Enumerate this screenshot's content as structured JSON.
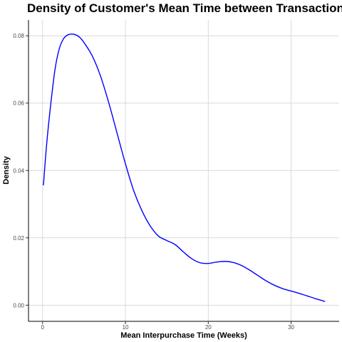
{
  "chart_data": {
    "type": "line",
    "title": "Density of Customer's Mean Time between Transactions",
    "xlabel": "Mean Interpurchase Time (Weeks)",
    "ylabel": "Density",
    "xlim": [
      -1.7,
      35.8
    ],
    "ylim": [
      -0.0048,
      0.0847
    ],
    "x_ticks": [
      0,
      10,
      20,
      30
    ],
    "x_tick_labels": [
      "0",
      "10",
      "20",
      "30"
    ],
    "y_ticks": [
      0,
      0.02,
      0.04,
      0.06,
      0.08
    ],
    "y_tick_labels": [
      "0.00",
      "0.02",
      "0.04",
      "0.06",
      "0.08"
    ],
    "grid": true,
    "legend": "none",
    "line_color": "#0000ff",
    "series": [
      {
        "x": [
          0.1,
          0.5,
          1.0,
          1.5,
          2.0,
          2.5,
          3.0,
          3.5,
          4.0,
          4.5,
          5.0,
          6.0,
          7.0,
          8.0,
          9.0,
          10.0,
          11.0,
          12.0,
          13.0,
          14.0,
          15.0,
          16.0,
          17.0,
          18.0,
          19.0,
          20.0,
          21.0,
          22.0,
          23.0,
          24.0,
          25.0,
          26.0,
          27.0,
          28.0,
          29.0,
          30.0,
          31.0,
          32.0,
          33.0,
          34.1
        ],
        "y": [
          0.0356,
          0.048,
          0.06,
          0.07,
          0.076,
          0.079,
          0.0802,
          0.0805,
          0.0803,
          0.0795,
          0.078,
          0.074,
          0.068,
          0.06,
          0.051,
          0.042,
          0.034,
          0.028,
          0.0235,
          0.0205,
          0.0192,
          0.018,
          0.0158,
          0.0138,
          0.0126,
          0.0124,
          0.0128,
          0.013,
          0.0127,
          0.0118,
          0.0104,
          0.0088,
          0.0072,
          0.0059,
          0.0049,
          0.0042,
          0.0035,
          0.0027,
          0.0019,
          0.0011
        ]
      }
    ]
  }
}
